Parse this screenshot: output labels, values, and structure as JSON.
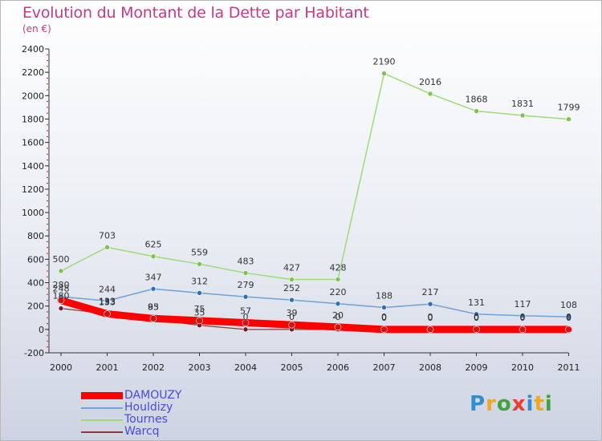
{
  "header": {
    "title": "Evolution du Montant de la Dette par Habitant",
    "subtitle": "(en €)"
  },
  "logo": {
    "letters": [
      "P",
      "r",
      "o",
      "x",
      "i",
      "t",
      "i"
    ],
    "colors": [
      "#2f8fce",
      "#f0a91c",
      "#3fa33f",
      "#e8402d",
      "#2f8fce",
      "#f0a91c",
      "#3fa33f"
    ]
  },
  "chart_data": {
    "type": "line",
    "title": "Evolution du Montant de la Dette par Habitant",
    "ylabel": "(en €)",
    "xlabel": "",
    "ylim": [
      -200,
      2400
    ],
    "yticks": [
      -200,
      0,
      200,
      400,
      600,
      800,
      1000,
      1200,
      1400,
      1600,
      1800,
      2000,
      2200,
      2400
    ],
    "categories": [
      "2000",
      "2001",
      "2002",
      "2003",
      "2004",
      "2005",
      "2006",
      "2007",
      "2008",
      "2009",
      "2010",
      "2011"
    ],
    "grid": false,
    "legend_position": "bottom-left",
    "series": [
      {
        "name": "DAMOUZY",
        "color": "#ff0000",
        "marker": "#d81010",
        "values": [
          248,
          133,
          93,
          75,
          57,
          39,
          20,
          0,
          0,
          0,
          0,
          0
        ]
      },
      {
        "name": "Houldizy",
        "color": "#6fa3d6",
        "marker": "#2d6fb5",
        "values": [
          280,
          244,
          347,
          312,
          279,
          252,
          220,
          188,
          217,
          131,
          117,
          108
        ]
      },
      {
        "name": "Tournes",
        "color": "#9ddb78",
        "marker": "#7bc34a",
        "values": [
          500,
          703,
          625,
          559,
          483,
          427,
          428,
          2190,
          2016,
          1868,
          1831,
          1799
        ]
      },
      {
        "name": "Warcq",
        "color": "#8b3a3a",
        "marker": "#6b1f1f",
        "values": [
          180,
          133,
          85,
          35,
          0,
          0,
          0,
          0,
          0,
          0,
          0,
          0
        ]
      }
    ]
  }
}
